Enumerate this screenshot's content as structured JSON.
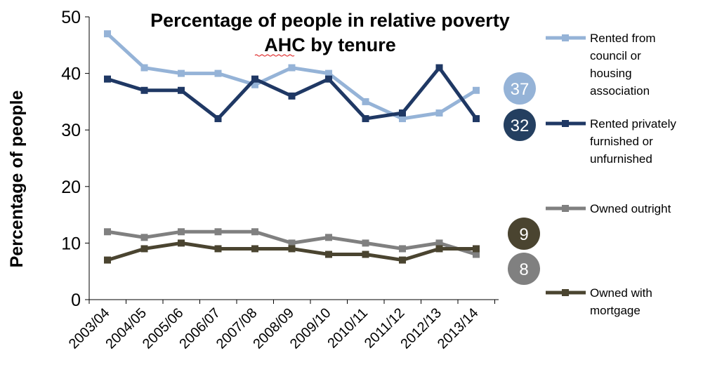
{
  "chart_data": {
    "type": "line",
    "title_lines": [
      "Percentage of people in relative poverty",
      "AHC by tenure"
    ],
    "xlabel": "",
    "ylabel": "Percentage of people",
    "ylim": [
      0,
      50
    ],
    "yticks": [
      0,
      10,
      20,
      30,
      40,
      50
    ],
    "categories": [
      "2003/04",
      "2004/05",
      "2005/06",
      "2006/07",
      "2007/08",
      "2008/09",
      "2009/10",
      "2010/11",
      "2011/12",
      "2012/13",
      "2013/14"
    ],
    "grid": false,
    "legend_position": "right",
    "series": [
      {
        "name": "Rented from council or housing association",
        "legend_lines": [
          "Rented from",
          "council or",
          "housing",
          "association"
        ],
        "color": "#95b3d7",
        "values": [
          47,
          41,
          40,
          40,
          38,
          41,
          40,
          35,
          32,
          33,
          37
        ],
        "latest_badge": "37",
        "badge_color": "#95b3d7"
      },
      {
        "name": "Rented privately furnished or unfurnished",
        "legend_lines": [
          "Rented privately",
          "furnished or",
          "unfurnished"
        ],
        "color": "#1f3864",
        "values": [
          39,
          37,
          37,
          32,
          39,
          36,
          39,
          32,
          33,
          41,
          32
        ],
        "latest_badge": "32",
        "badge_color": "#243f60"
      },
      {
        "name": "Owned outright",
        "legend_lines": [
          "Owned outright"
        ],
        "color": "#808080",
        "values": [
          12,
          11,
          12,
          12,
          12,
          10,
          11,
          10,
          9,
          10,
          8
        ],
        "latest_badge": "8",
        "badge_color": "#808080"
      },
      {
        "name": "Owned with mortgage",
        "legend_lines": [
          "Owned with",
          "mortgage"
        ],
        "color": "#4a4430",
        "values": [
          7,
          9,
          10,
          9,
          9,
          9,
          8,
          8,
          7,
          9,
          9
        ],
        "latest_badge": "9",
        "badge_color": "#4a4430"
      }
    ]
  }
}
